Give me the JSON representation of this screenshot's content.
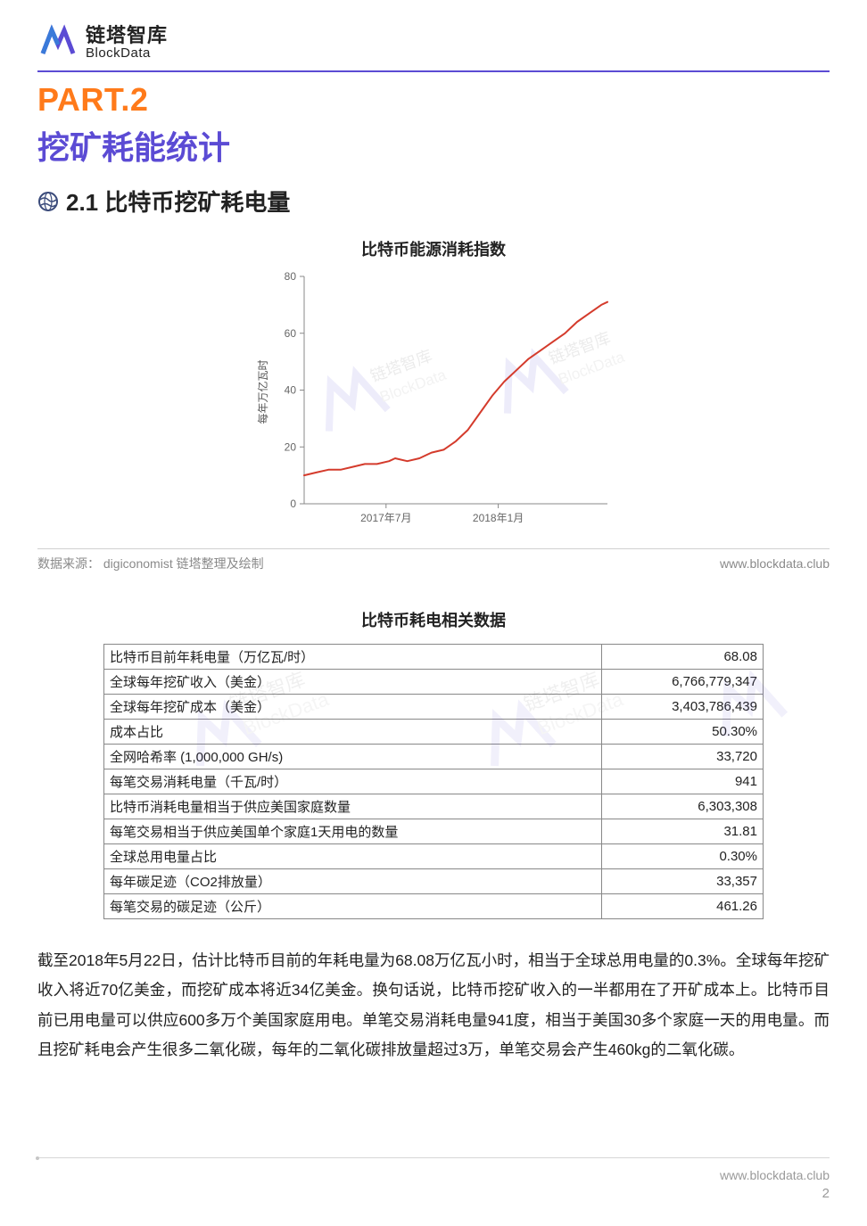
{
  "brand": {
    "cn": "链塔智库",
    "en": "BlockData",
    "logo_color_a": "#5b4bd4",
    "logo_color_b": "#3a7ad9"
  },
  "part": {
    "label": "PART.2",
    "title": "挖矿耗能统计",
    "label_color": "#ff7a1a",
    "title_color": "#5b4bd4"
  },
  "section": {
    "number_title": "2.1 比特币挖矿耗电量",
    "icon_color": "#3a4a7a"
  },
  "chart": {
    "title": "比特币能源消耗指数",
    "type": "line",
    "ylabel": "每年万亿瓦时",
    "ylim": [
      0,
      80
    ],
    "ytick_step": 20,
    "yticks": [
      0,
      20,
      40,
      60,
      80
    ],
    "xticks": [
      "2017年7月",
      "2018年1月"
    ],
    "line_color": "#d43b2c",
    "line_width": 2,
    "axis_color": "#888888",
    "tick_font_size": 12,
    "label_font_size": 12,
    "points": [
      [
        0.0,
        10
      ],
      [
        0.04,
        11
      ],
      [
        0.08,
        12
      ],
      [
        0.12,
        12
      ],
      [
        0.16,
        13
      ],
      [
        0.2,
        14
      ],
      [
        0.24,
        14
      ],
      [
        0.28,
        15
      ],
      [
        0.3,
        16
      ],
      [
        0.34,
        15
      ],
      [
        0.38,
        16
      ],
      [
        0.42,
        18
      ],
      [
        0.46,
        19
      ],
      [
        0.5,
        22
      ],
      [
        0.54,
        26
      ],
      [
        0.58,
        32
      ],
      [
        0.62,
        38
      ],
      [
        0.66,
        43
      ],
      [
        0.7,
        47
      ],
      [
        0.74,
        51
      ],
      [
        0.78,
        54
      ],
      [
        0.82,
        57
      ],
      [
        0.86,
        60
      ],
      [
        0.9,
        64
      ],
      [
        0.94,
        67
      ],
      [
        0.98,
        70
      ],
      [
        1.0,
        71
      ]
    ],
    "watermark_cn": "链塔智库",
    "watermark_en": "BlockData"
  },
  "source": {
    "label": "数据来源：",
    "text": "digiconomist 链塔整理及绘制",
    "url": "www.blockdata.club"
  },
  "table": {
    "title": "比特币耗电相关数据",
    "border_color": "#888888",
    "rows": [
      {
        "label": "比特币目前年耗电量（万亿瓦/时）",
        "value": "68.08"
      },
      {
        "label": "全球每年挖矿收入（美金）",
        "value": "6,766,779,347"
      },
      {
        "label": "全球每年挖矿成本（美金）",
        "value": "3,403,786,439"
      },
      {
        "label": "成本占比",
        "value": "50.30%"
      },
      {
        "label": "全网哈希率 (1,000,000 GH/s)",
        "value": "33,720"
      },
      {
        "label": "每笔交易消耗电量（千瓦/时）",
        "value": "941"
      },
      {
        "label": "比特币消耗电量相当于供应美国家庭数量",
        "value": "6,303,308"
      },
      {
        "label": "每笔交易相当于供应美国单个家庭1天用电的数量",
        "value": "31.81"
      },
      {
        "label": "全球总用电量占比",
        "value": "0.30%"
      },
      {
        "label": "每年碳足迹（CO2排放量）",
        "value": "33,357"
      },
      {
        "label": "每笔交易的碳足迹（公斤）",
        "value": "461.26"
      }
    ]
  },
  "body": "截至2018年5月22日，估计比特币目前的年耗电量为68.08万亿瓦小时，相当于全球总用电量的0.3%。全球每年挖矿收入将近70亿美金，而挖矿成本将近34亿美金。换句话说，比特币挖矿收入的一半都用在了开矿成本上。比特币目前已用电量可以供应600多万个美国家庭用电。单笔交易消耗电量941度，相当于美国30多个家庭一天的用电量。而且挖矿耗电会产生很多二氧化碳，每年的二氧化碳排放量超过3万，单笔交易会产生460kg的二氧化碳。",
  "footer": {
    "url": "www.blockdata.club",
    "page": "2"
  }
}
